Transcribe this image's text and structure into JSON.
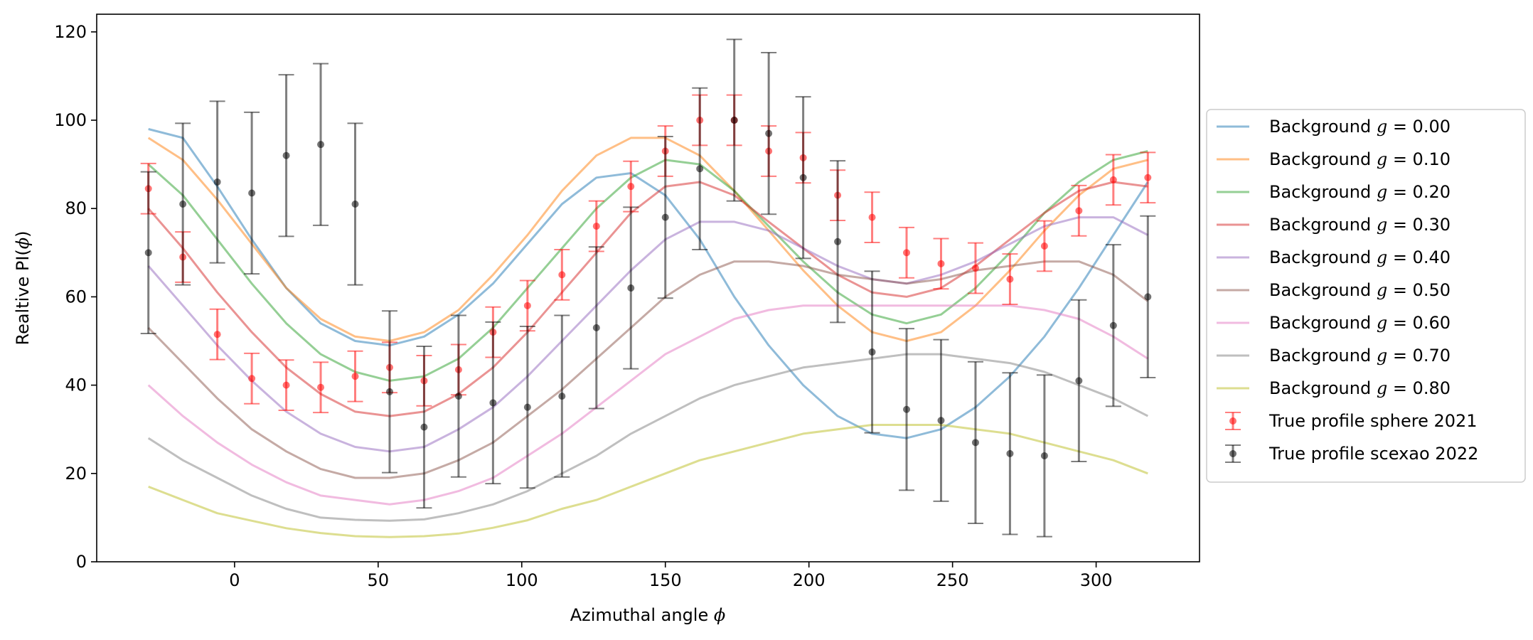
{
  "chart_data": {
    "type": "line",
    "xlabel_text": "Azimuthal angle",
    "xlabel_symbol": "ϕ",
    "ylabel_text": "Realtive PI(",
    "ylabel_symbol": "ϕ",
    "ylabel_close": ")",
    "xlim": [
      -48,
      336
    ],
    "ylim": [
      0,
      124
    ],
    "xticks": [
      0,
      50,
      100,
      150,
      200,
      250,
      300
    ],
    "yticks": [
      0,
      20,
      40,
      60,
      80,
      100,
      120
    ],
    "x": [
      -30,
      -18,
      -6,
      6,
      18,
      30,
      42,
      54,
      66,
      78,
      90,
      102,
      114,
      126,
      138,
      150,
      162,
      174,
      186,
      198,
      210,
      222,
      234,
      246,
      258,
      270,
      282,
      294,
      306,
      318
    ],
    "legend_position": "center-right outside",
    "series": [
      {
        "name_text": "Background",
        "g_value": "0.00",
        "color": "#1f77b4",
        "values": [
          98,
          96,
          85,
          73,
          62,
          54,
          50,
          49,
          51,
          56,
          63,
          72,
          81,
          87,
          88,
          83,
          73,
          60,
          49,
          40,
          33,
          29,
          28,
          30,
          35,
          42,
          51,
          62,
          74,
          86
        ]
      },
      {
        "name_text": "Background",
        "g_value": "0.10",
        "color": "#ff7f0e",
        "values": [
          96,
          91,
          82,
          72,
          62,
          55,
          51,
          50,
          52,
          57,
          65,
          74,
          84,
          92,
          96,
          96,
          92,
          84,
          75,
          66,
          58,
          52,
          50,
          52,
          58,
          66,
          75,
          83,
          89,
          91
        ]
      },
      {
        "name_text": "Background",
        "g_value": "0.20",
        "color": "#2ca02c",
        "values": [
          90,
          83,
          73,
          63,
          54,
          47,
          43,
          41,
          42,
          46,
          53,
          62,
          71,
          80,
          87,
          91,
          90,
          84,
          76,
          68,
          61,
          56,
          54,
          56,
          62,
          70,
          79,
          86,
          91,
          93
        ]
      },
      {
        "name_text": "Background",
        "g_value": "0.30",
        "color": "#d62728",
        "values": [
          80,
          71,
          61,
          52,
          44,
          38,
          34,
          33,
          34,
          38,
          44,
          52,
          61,
          70,
          79,
          85,
          86,
          83,
          77,
          71,
          65,
          61,
          60,
          62,
          67,
          73,
          79,
          84,
          86,
          85
        ]
      },
      {
        "name_text": "Background",
        "g_value": "0.40",
        "color": "#9467bd",
        "values": [
          67,
          58,
          49,
          41,
          34,
          29,
          26,
          25,
          26,
          30,
          35,
          42,
          50,
          58,
          66,
          73,
          77,
          77,
          75,
          71,
          67,
          64,
          63,
          65,
          68,
          72,
          76,
          78,
          78,
          74
        ]
      },
      {
        "name_text": "Background",
        "g_value": "0.50",
        "color": "#8c564b",
        "values": [
          53,
          45,
          37,
          30,
          25,
          21,
          19,
          19,
          20,
          23,
          27,
          33,
          39,
          46,
          53,
          60,
          65,
          68,
          68,
          67,
          65,
          64,
          63,
          64,
          66,
          67,
          68,
          68,
          65,
          59
        ]
      },
      {
        "name_text": "Background",
        "g_value": "0.60",
        "color": "#e377c2",
        "values": [
          40,
          33,
          27,
          22,
          18,
          15,
          14,
          13,
          14,
          16,
          19,
          24,
          29,
          35,
          41,
          47,
          51,
          55,
          57,
          58,
          58,
          58,
          58,
          58,
          58,
          58,
          57,
          55,
          51,
          46
        ]
      },
      {
        "name_text": "Background",
        "g_value": "0.70",
        "color": "#7f7f7f",
        "values": [
          28,
          23,
          19,
          15,
          12,
          10,
          9.5,
          9.3,
          9.6,
          11,
          13,
          16,
          20,
          24,
          29,
          33,
          37,
          40,
          42,
          44,
          45,
          46,
          47,
          47,
          46,
          45,
          43,
          40,
          37,
          33
        ]
      },
      {
        "name_text": "Background",
        "g_value": "0.80",
        "color": "#bcbd22",
        "values": [
          17,
          14,
          11,
          9.3,
          7.6,
          6.5,
          5.8,
          5.6,
          5.8,
          6.4,
          7.7,
          9.4,
          12,
          14,
          17,
          20,
          23,
          25,
          27,
          29,
          30,
          31,
          31,
          31,
          30,
          29,
          27,
          25,
          23,
          20
        ]
      }
    ],
    "errorbar_series": [
      {
        "name": "True profile sphere 2021",
        "color": "#ff0000",
        "values": [
          84.5,
          69,
          51.5,
          41.5,
          40,
          39.5,
          42,
          44,
          41,
          43.5,
          52,
          58,
          65,
          76,
          85,
          93,
          100,
          100,
          93,
          91.5,
          83,
          78,
          70,
          67.5,
          66.5,
          64,
          71.5,
          79.5,
          86.5,
          87
        ],
        "errors": [
          5.7,
          5.7,
          5.7,
          5.7,
          5.7,
          5.7,
          5.7,
          5.7,
          5.7,
          5.7,
          5.7,
          5.7,
          5.7,
          5.7,
          5.7,
          5.7,
          5.7,
          5.7,
          5.7,
          5.7,
          5.7,
          5.7,
          5.7,
          5.7,
          5.7,
          5.7,
          5.7,
          5.7,
          5.7,
          5.7
        ]
      },
      {
        "name": "True profile scexao 2022",
        "color": "#000000",
        "values": [
          70,
          81,
          86,
          83.5,
          92,
          94.5,
          81,
          38.5,
          30.5,
          37.5,
          36,
          35,
          37.5,
          53,
          62,
          78,
          89,
          100,
          97,
          87,
          72.5,
          47.5,
          34.5,
          32,
          27,
          24.5,
          24,
          41,
          53.5,
          60
        ],
        "errors": [
          18.3,
          18.3,
          18.3,
          18.3,
          18.3,
          18.3,
          18.3,
          18.3,
          18.3,
          18.3,
          18.3,
          18.3,
          18.3,
          18.3,
          18.3,
          18.3,
          18.3,
          18.3,
          18.3,
          18.3,
          18.3,
          18.3,
          18.3,
          18.3,
          18.3,
          18.3,
          18.3,
          18.3,
          18.3,
          18.3
        ]
      }
    ]
  }
}
